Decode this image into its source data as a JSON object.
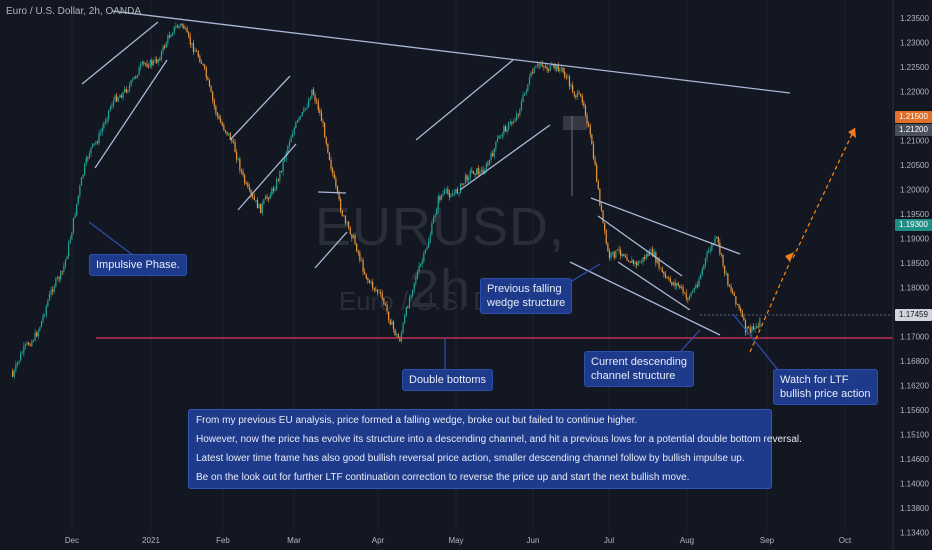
{
  "header": {
    "title": "Euro / U.S. Dollar, 2h, OANDA"
  },
  "watermark": {
    "symbol": "EURUSD, 2h",
    "name": "Euro / U.S. Dollar"
  },
  "colors": {
    "background": "#131722",
    "up": "#26a69a",
    "down": "#ef9a40",
    "trendline": "#aab7d6",
    "support": "#e0325e",
    "projection": "#ef7f1a",
    "note_bg": "#1e3a8a"
  },
  "notes": {
    "impulsive": "Impulsive Phase.",
    "previous_wedge": [
      "Previous falling",
      "wedge structure"
    ],
    "double_bottoms": "Double bottoms",
    "current_channel": [
      "Current descending",
      "channel structure"
    ],
    "watch": [
      "Watch for LTF",
      "bullish price action"
    ]
  },
  "analysis": [
    "From my previous EU analysis, price formed a falling wedge, broke out but failed to continue higher.",
    "However, now the price has evolve its structure into a descending channel, and hit a previous lows for a potential double bottom reversal.",
    "Latest lower time frame has also good bullish reversal price action, smaller descending channel follow by bullish impulse up.",
    "Be on the look out for further LTF continuation correction to reverse the price up and start the next bullish move."
  ],
  "price_labels": {
    "orange": {
      "value": "1.21500",
      "color": "#e0702a"
    },
    "gray": {
      "value": "1.21200",
      "color": "#4a4f5c"
    },
    "teal": {
      "value": "1.19300",
      "color": "#1f8f86"
    },
    "current": {
      "value": "1.17459",
      "color": "#d1d4dc"
    }
  },
  "chart_data": {
    "type": "candlestick",
    "y_ticks": [
      "1.23500",
      "1.23000",
      "1.22500",
      "1.22000",
      "1.21500",
      "1.21000",
      "1.20500",
      "1.20000",
      "1.19500",
      "1.19000",
      "1.18500",
      "1.18000",
      "1.17500",
      "1.17000",
      "1.16800",
      "1.16200",
      "1.15600",
      "1.15100",
      "1.14600",
      "1.14000",
      "1.13800",
      "1.13400"
    ],
    "x_ticks": [
      "Dec",
      "2021",
      "Feb",
      "Mar",
      "Apr",
      "May",
      "Jun",
      "Jul",
      "Aug",
      "Sep",
      "Oct"
    ],
    "support_level": 1.17,
    "price_path": [
      [
        "2020-11-01",
        1.163
      ],
      [
        "2020-11-20",
        1.183
      ],
      [
        "2020-12-01",
        1.207
      ],
      [
        "2020-12-15",
        1.222
      ],
      [
        "2021-01-06",
        1.234
      ],
      [
        "2021-01-20",
        1.214
      ],
      [
        "2021-02-05",
        1.196
      ],
      [
        "2021-02-25",
        1.22
      ],
      [
        "2021-03-10",
        1.192
      ],
      [
        "2021-03-31",
        1.171
      ],
      [
        "2021-04-15",
        1.196
      ],
      [
        "2021-05-01",
        1.204
      ],
      [
        "2021-05-25",
        1.226
      ],
      [
        "2021-06-10",
        1.218
      ],
      [
        "2021-06-20",
        1.188
      ],
      [
        "2021-07-07",
        1.186
      ],
      [
        "2021-07-20",
        1.176
      ],
      [
        "2021-08-01",
        1.19
      ],
      [
        "2021-08-12",
        1.172
      ],
      [
        "2021-08-18",
        1.1746
      ]
    ]
  }
}
